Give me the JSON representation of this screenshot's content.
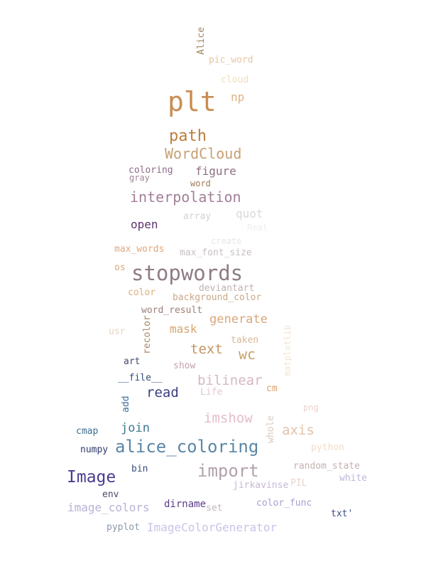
{
  "words": [
    {
      "text": "plt",
      "color": "#c98d52"
    },
    {
      "text": "stopwords",
      "color": "#8f7b85"
    },
    {
      "text": "alice_coloring",
      "color": "#5b86a6"
    },
    {
      "text": "import",
      "color": "#b1a1ac"
    },
    {
      "text": "Image",
      "color": "#4b3b90"
    },
    {
      "text": "path",
      "color": "#ba7f3e"
    },
    {
      "text": "WordCloud",
      "color": "#c8a074"
    },
    {
      "text": "interpolation",
      "color": "#a27f98"
    },
    {
      "text": "bilinear",
      "color": "#d6b8c3"
    },
    {
      "text": "imshow",
      "color": "#e5bcc8"
    },
    {
      "text": "axis",
      "color": "#e2c2a9"
    },
    {
      "text": "text",
      "color": "#c49564"
    },
    {
      "text": "wc",
      "color": "#c7a06e"
    },
    {
      "text": "generate",
      "color": "#d9a67a"
    },
    {
      "text": "read",
      "color": "#3a3d82"
    },
    {
      "text": "join",
      "color": "#3d7a93"
    },
    {
      "text": "figure",
      "color": "#8f6f82"
    },
    {
      "text": "open",
      "color": "#5c3470"
    },
    {
      "text": "mask",
      "color": "#d4a46e"
    },
    {
      "text": "np",
      "color": "#ddb37e"
    },
    {
      "text": "image_colors",
      "color": "#b7b2d6"
    },
    {
      "text": "ImageColorGenerator",
      "color": "#c8c4e8"
    },
    {
      "text": "quot",
      "color": "#d9d9d9"
    },
    {
      "text": "pic_word",
      "color": "#e6c6a4"
    },
    {
      "text": "cloud",
      "color": "#efdcbb"
    },
    {
      "text": "Alice",
      "color": "#a0845d"
    },
    {
      "text": "coloring",
      "color": "#8e6b87"
    },
    {
      "text": "gray",
      "color": "#a6849a"
    },
    {
      "text": "word",
      "color": "#a07b55"
    },
    {
      "text": "array",
      "color": "#d4d0d0"
    },
    {
      "text": "Real",
      "color": "#eeeeee"
    },
    {
      "text": "create",
      "color": "#e6e6e6"
    },
    {
      "text": "max_words",
      "color": "#dea980"
    },
    {
      "text": "max_font_size",
      "color": "#c8c0c0"
    },
    {
      "text": "os",
      "color": "#dba774"
    },
    {
      "text": "deviantart",
      "color": "#bfb1b0"
    },
    {
      "text": "color",
      "color": "#d8b27c"
    },
    {
      "text": "background_color",
      "color": "#c8a989"
    },
    {
      "text": "word_result",
      "color": "#9c8276"
    },
    {
      "text": "usr",
      "color": "#e8d4c0"
    },
    {
      "text": "recolor",
      "color": "#a78868"
    },
    {
      "text": "taken",
      "color": "#d9b894"
    },
    {
      "text": "matplotlib",
      "color": "#f2e4cf"
    },
    {
      "text": "art",
      "color": "#404b6a"
    },
    {
      "text": "show",
      "color": "#c2a2ad"
    },
    {
      "text": "__file__",
      "color": "#2f4a7a"
    },
    {
      "text": "Life",
      "color": "#e2c8cf"
    },
    {
      "text": "cm",
      "color": "#d6a36c"
    },
    {
      "text": "add",
      "color": "#3d6e9a"
    },
    {
      "text": "png",
      "color": "#efd0d0"
    },
    {
      "text": "whole",
      "color": "#d8cbc2"
    },
    {
      "text": "cmap",
      "color": "#3e6e8e"
    },
    {
      "text": "python",
      "color": "#f2ddc8"
    },
    {
      "text": "numpy",
      "color": "#2e3a6a"
    },
    {
      "text": "bin",
      "color": "#3a4f80"
    },
    {
      "text": "random_state",
      "color": "#c6b0b0"
    },
    {
      "text": "white",
      "color": "#bcb7d8"
    },
    {
      "text": "jirkavinse",
      "color": "#c7b9d6"
    },
    {
      "text": "PIL",
      "color": "#ead4cf"
    },
    {
      "text": "env",
      "color": "#4a4a6e"
    },
    {
      "text": "dirname",
      "color": "#5b3c87"
    },
    {
      "text": "set",
      "color": "#c2b7b7"
    },
    {
      "text": "color_func",
      "color": "#a6a0d0"
    },
    {
      "text": "txt'",
      "color": "#3a4e86"
    },
    {
      "text": "pyplot",
      "color": "#8a9aaa"
    }
  ]
}
